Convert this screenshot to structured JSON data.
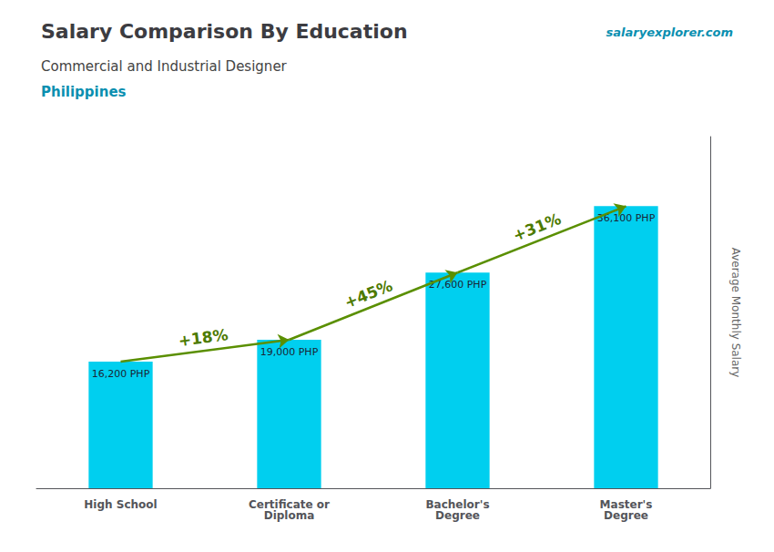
{
  "chart_data": {
    "type": "bar",
    "title": "Salary Comparison By Education",
    "subtitle": "Commercial and Industrial Designer",
    "ylabel": "Average Monthly Salary",
    "categories": [
      "High School",
      "Certificate or\nDiploma",
      "Bachelor's\nDegree",
      "Master's\nDegree"
    ],
    "values": [
      16200,
      19000,
      27600,
      36100
    ],
    "value_labels": [
      "16,200 PHP",
      "19,000 PHP",
      "27,600 PHP",
      "36,100 PHP"
    ],
    "data_labels": true,
    "color": "#00cfef",
    "ylim": [
      0,
      45000
    ],
    "grid": false,
    "tick_labels": "x",
    "annotations": [
      {
        "text": "Philippines"
      },
      {
        "text": "salaryexplorer.com"
      },
      {
        "text": "+18%",
        "from": "High School",
        "to": "Certificate or\nDiploma"
      },
      {
        "text": "+45%",
        "from": "Certificate or\nDiploma",
        "to": "Bachelor's\nDegree"
      },
      {
        "text": "+31%",
        "from": "Bachelor's\nDegree",
        "to": "Master's\nDegree"
      }
    ]
  }
}
